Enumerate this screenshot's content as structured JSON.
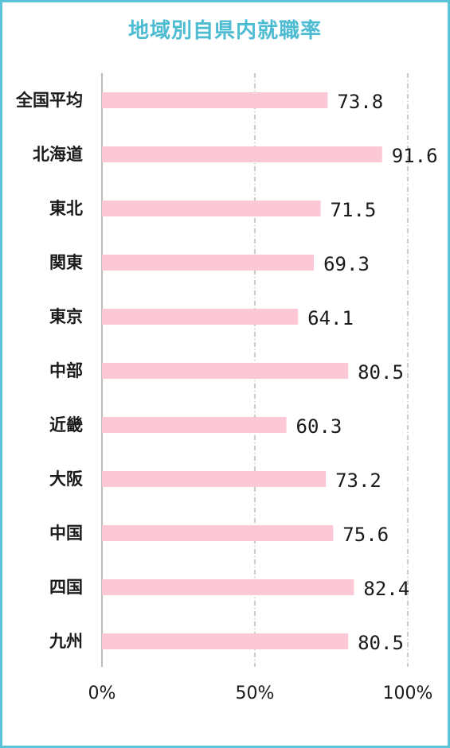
{
  "chart_data": {
    "type": "bar",
    "orientation": "horizontal",
    "title": "地域別自県内就職率",
    "categories": [
      "全国平均",
      "北海道",
      "東北",
      "関東",
      "東京",
      "中部",
      "近畿",
      "大阪",
      "中国",
      "四国",
      "九州"
    ],
    "values": [
      73.8,
      91.6,
      71.5,
      69.3,
      64.1,
      80.5,
      60.3,
      73.2,
      75.6,
      82.4,
      80.5
    ],
    "value_labels": [
      "73.8",
      "91.6",
      "71.5",
      "69.3",
      "64.1",
      "80.5",
      "60.3",
      "73.2",
      "75.6",
      "82.4",
      "80.5"
    ],
    "xlim": [
      0,
      100
    ],
    "x_ticks": [
      0,
      50,
      100
    ],
    "x_tick_labels": [
      "0%",
      "50%",
      "100%"
    ],
    "gridlines": "dash-dot at 50% and 100%",
    "colors": {
      "bar": "#fcc8d6",
      "title": "#4dbcd3",
      "border": "#5bc4d8",
      "axis": "#bbbbbb",
      "grid": "#999999"
    }
  }
}
